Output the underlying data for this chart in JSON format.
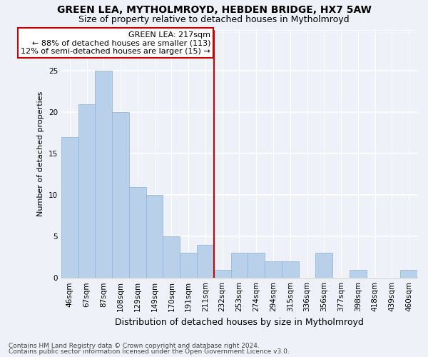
{
  "title": "GREEN LEA, MYTHOLMROYD, HEBDEN BRIDGE, HX7 5AW",
  "subtitle": "Size of property relative to detached houses in Mytholmroyd",
  "xlabel": "Distribution of detached houses by size in Mytholmroyd",
  "ylabel": "Number of detached properties",
  "categories": [
    "46sqm",
    "67sqm",
    "87sqm",
    "108sqm",
    "129sqm",
    "149sqm",
    "170sqm",
    "191sqm",
    "211sqm",
    "232sqm",
    "253sqm",
    "274sqm",
    "294sqm",
    "315sqm",
    "336sqm",
    "356sqm",
    "377sqm",
    "398sqm",
    "418sqm",
    "439sqm",
    "460sqm"
  ],
  "values": [
    17,
    21,
    25,
    20,
    11,
    10,
    5,
    3,
    4,
    1,
    3,
    3,
    2,
    2,
    0,
    3,
    0,
    1,
    0,
    0,
    1
  ],
  "bar_color": "#b8d0ea",
  "bar_edge_color": "#94b8d8",
  "highlight_line_idx": 8,
  "highlight_label": "GREEN LEA: 217sqm",
  "highlight_line1": "← 88% of detached houses are smaller (113)",
  "highlight_line2": "12% of semi-detached houses are larger (15) →",
  "annotation_box_color": "#cc0000",
  "background_color": "#eef2f8",
  "ylim": [
    0,
    30
  ],
  "yticks": [
    0,
    5,
    10,
    15,
    20,
    25,
    30
  ],
  "footnote1": "Contains HM Land Registry data © Crown copyright and database right 2024.",
  "footnote2": "Contains public sector information licensed under the Open Government Licence v3.0.",
  "title_fontsize": 10,
  "subtitle_fontsize": 9,
  "xlabel_fontsize": 9,
  "ylabel_fontsize": 8,
  "tick_fontsize": 7.5,
  "annotation_fontsize": 8,
  "footnote_fontsize": 6.5
}
